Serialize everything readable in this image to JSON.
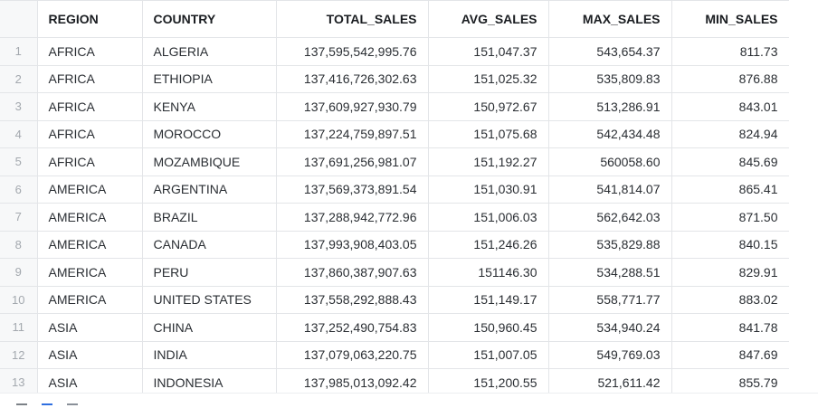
{
  "columns": {
    "index": "",
    "region": "REGION",
    "country": "COUNTRY",
    "total_sales": "TOTAL_SALES",
    "avg_sales": "AVG_SALES",
    "max_sales": "MAX_SALES",
    "min_sales": "MIN_SALES"
  },
  "rows": [
    {
      "n": "1",
      "region": "AFRICA",
      "country": "ALGERIA",
      "total": "137,595,542,995.76",
      "avg": "151,047.37",
      "max": "543,654.37",
      "min": "811.73"
    },
    {
      "n": "2",
      "region": "AFRICA",
      "country": "ETHIOPIA",
      "total": "137,416,726,302.63",
      "avg": "151,025.32",
      "max": "535,809.83",
      "min": "876.88"
    },
    {
      "n": "3",
      "region": "AFRICA",
      "country": "KENYA",
      "total": "137,609,927,930.79",
      "avg": "150,972.67",
      "max": "513,286.91",
      "min": "843.01"
    },
    {
      "n": "4",
      "region": "AFRICA",
      "country": "MOROCCO",
      "total": "137,224,759,897.51",
      "avg": "151,075.68",
      "max": "542,434.48",
      "min": "824.94"
    },
    {
      "n": "5",
      "region": "AFRICA",
      "country": "MOZAMBIQUE",
      "total": "137,691,256,981.07",
      "avg": "151,192.27",
      "max": "560058.60",
      "min": "845.69"
    },
    {
      "n": "6",
      "region": "AMERICA",
      "country": "ARGENTINA",
      "total": "137,569,373,891.54",
      "avg": "151,030.91",
      "max": "541,814.07",
      "min": "865.41"
    },
    {
      "n": "7",
      "region": "AMERICA",
      "country": "BRAZIL",
      "total": "137,288,942,772.96",
      "avg": "151,006.03",
      "max": "562,642.03",
      "min": "871.50"
    },
    {
      "n": "8",
      "region": "AMERICA",
      "country": "CANADA",
      "total": "137,993,908,403.05",
      "avg": "151,246.26",
      "max": "535,829.88",
      "min": "840.15"
    },
    {
      "n": "9",
      "region": "AMERICA",
      "country": "PERU",
      "total": "137,860,387,907.63",
      "avg": "151146.30",
      "max": "534,288.51",
      "min": "829.91"
    },
    {
      "n": "10",
      "region": "AMERICA",
      "country": "UNITED STATES",
      "total": "137,558,292,888.43",
      "avg": "151,149.17",
      "max": "558,771.77",
      "min": "883.02"
    },
    {
      "n": "11",
      "region": "ASIA",
      "country": "CHINA",
      "total": "137,252,490,754.83",
      "avg": "150,960.45",
      "max": "534,940.24",
      "min": "841.78"
    },
    {
      "n": "12",
      "region": "ASIA",
      "country": "INDIA",
      "total": "137,079,063,220.75",
      "avg": "151,007.05",
      "max": "549,769.03",
      "min": "847.69"
    },
    {
      "n": "13",
      "region": "ASIA",
      "country": "INDONESIA",
      "total": "137,985,013,092.42",
      "avg": "151,200.55",
      "max": "521,611.42",
      "min": "855.79"
    }
  ],
  "footer": {
    "icons": [
      "grid-view-icon",
      "table-view-icon",
      "chart-view-icon"
    ],
    "accent_color": "#2f6fe0"
  }
}
